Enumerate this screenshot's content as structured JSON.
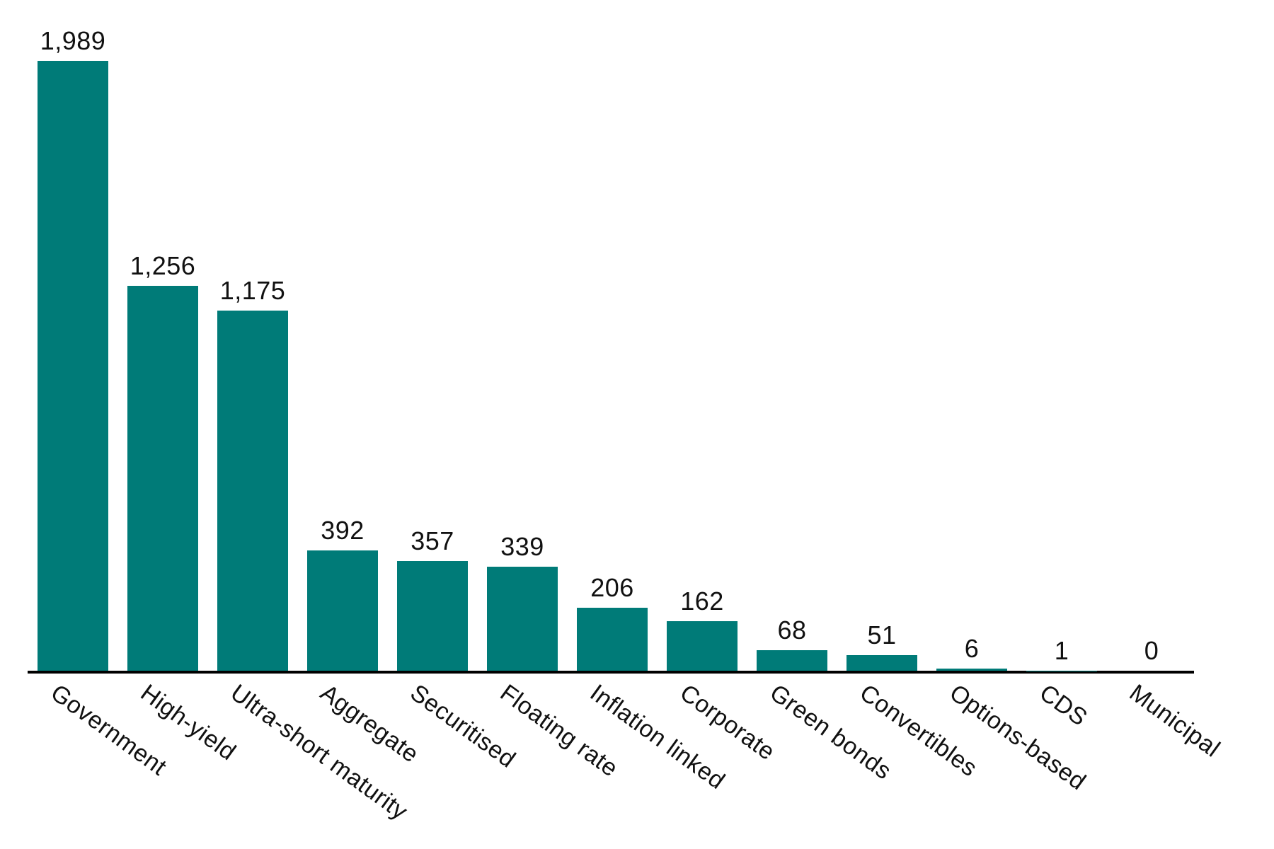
{
  "chart_data": {
    "type": "bar",
    "title": "",
    "xlabel": "",
    "ylabel": "",
    "categories": [
      "Government",
      "High-yield",
      "Ultra-short maturity",
      "Aggregate",
      "Securitised",
      "Floating rate",
      "Inflation linked",
      "Corporate",
      "Green bonds",
      "Convertibles",
      "Options-based",
      "CDS",
      "Municipal"
    ],
    "values": [
      1989,
      1256,
      1175,
      392,
      357,
      339,
      206,
      162,
      68,
      51,
      6,
      1,
      0
    ],
    "value_labels": [
      "1,989",
      "1,256",
      "1,175",
      "392",
      "357",
      "339",
      "206",
      "162",
      "68",
      "51",
      "6",
      "1",
      "0"
    ],
    "ylim": [
      0,
      1989
    ],
    "grid": false,
    "legend": false,
    "tick_rotation_deg": 36,
    "bar_color": "#007b78",
    "axis_color": "#000000",
    "text_color": "#111111",
    "background_color": "#ffffff"
  }
}
